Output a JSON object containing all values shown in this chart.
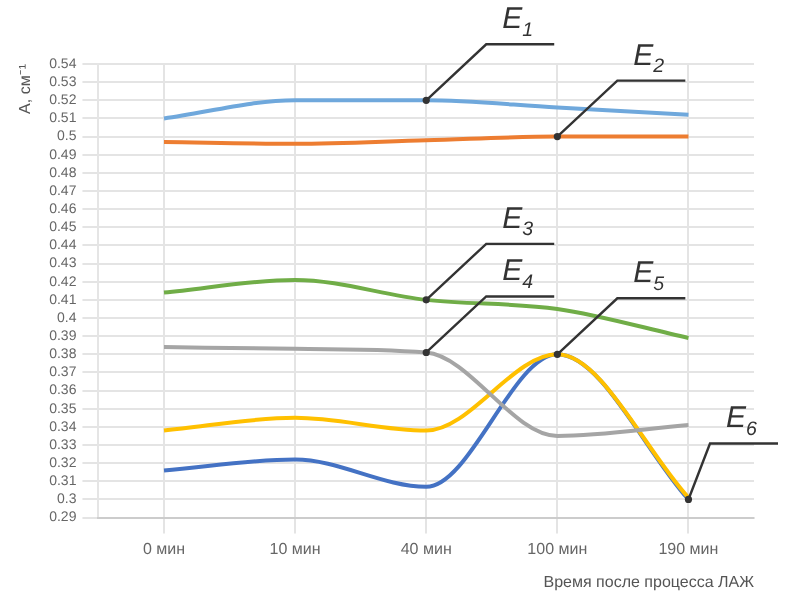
{
  "chart_data": {
    "type": "line",
    "ylabel": "A, см⁻¹",
    "xlabel": "Время после процесса ЛАЖ",
    "categories": [
      "0 мин",
      "10 мин",
      "40 мин",
      "100 мин",
      "190 мин"
    ],
    "series": [
      {
        "color": "#6fa8dc",
        "values": [
          0.51,
          0.52,
          0.52,
          0.516,
          0.512
        ]
      },
      {
        "color": "#ed7d31",
        "values": [
          0.497,
          0.496,
          0.498,
          0.5,
          0.5
        ]
      },
      {
        "color": "#70ad47",
        "values": [
          0.414,
          0.421,
          0.41,
          0.405,
          0.389
        ]
      },
      {
        "color": "#a5a5a5",
        "values": [
          0.384,
          0.383,
          0.381,
          0.335,
          0.341
        ]
      },
      {
        "color": "#ffc000",
        "values": [
          0.338,
          0.345,
          0.338,
          0.38,
          0.301
        ]
      },
      {
        "color": "#4472c4",
        "values": [
          0.316,
          0.322,
          0.307,
          0.38,
          0.3
        ]
      }
    ],
    "ylim": [
      0.29,
      0.54
    ],
    "yticks": [
      0.29,
      0.3,
      0.31,
      0.32,
      0.33,
      0.34,
      0.35,
      0.36,
      0.37,
      0.38,
      0.39,
      0.4,
      0.41,
      0.42,
      0.43,
      0.44,
      0.45,
      0.46,
      0.47,
      0.48,
      0.49,
      0.5,
      0.51,
      0.52,
      0.53,
      0.54
    ],
    "grid": true,
    "marker": "none",
    "line_style": "solid",
    "legend": false,
    "annotations": [
      {
        "text": "E$_{1}$",
        "x": "40 мин",
        "y": 0.52
      },
      {
        "text": "E$_{2}$",
        "x": "100 мин",
        "y": 0.5
      },
      {
        "text": "E$_{3}$",
        "x": "40 мин",
        "y": 0.41
      },
      {
        "text": "E$_{4}$",
        "x": "40 мин",
        "y": 0.381
      },
      {
        "text": "E$_{5}$",
        "x": "100 мин",
        "y": 0.38
      },
      {
        "text": "E$_{6}$",
        "x": "190 мин",
        "y": 0.3
      }
    ]
  }
}
